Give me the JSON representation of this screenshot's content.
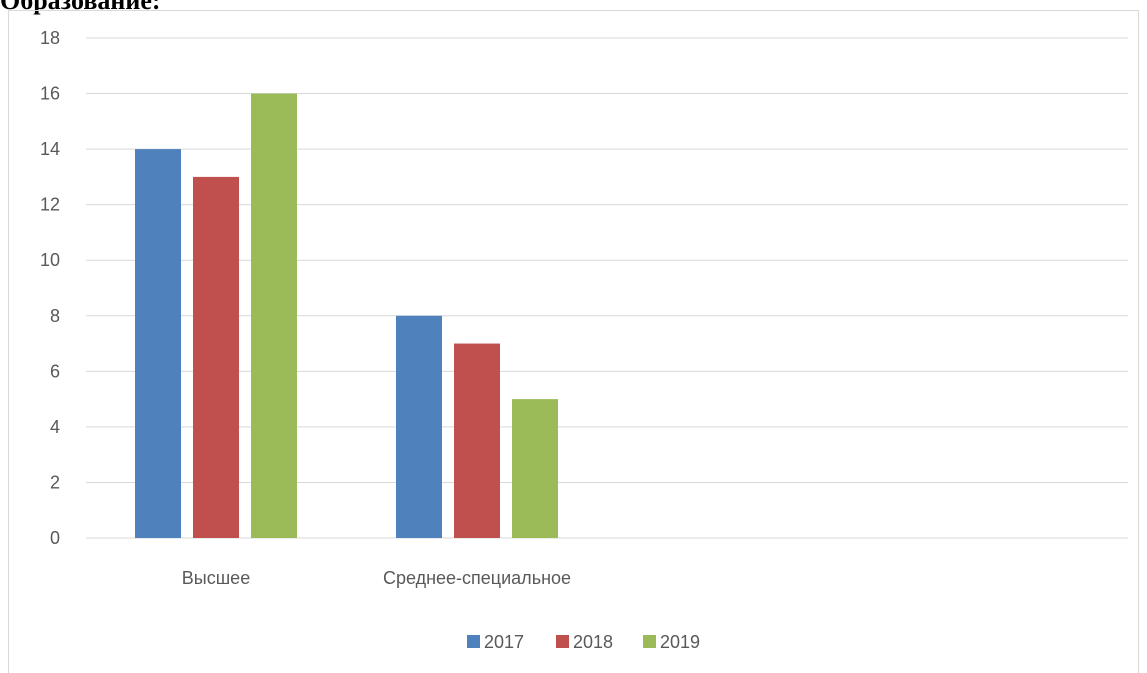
{
  "heading": "Образование:",
  "chart_data": {
    "type": "bar",
    "categories": [
      "Высшее",
      "Среднее-специальное"
    ],
    "series": [
      {
        "name": "2017",
        "values": [
          14,
          8
        ],
        "color": "#4f81bd"
      },
      {
        "name": "2018",
        "values": [
          13,
          7
        ],
        "color": "#c0504d"
      },
      {
        "name": "2019",
        "values": [
          16,
          5
        ],
        "color": "#9bbb59"
      }
    ],
    "ylim": [
      0,
      18
    ],
    "yticks": [
      0,
      2,
      4,
      6,
      8,
      10,
      12,
      14,
      16,
      18
    ],
    "grid": true,
    "legend": "bottom",
    "title": "",
    "xlabel": "",
    "ylabel": ""
  }
}
